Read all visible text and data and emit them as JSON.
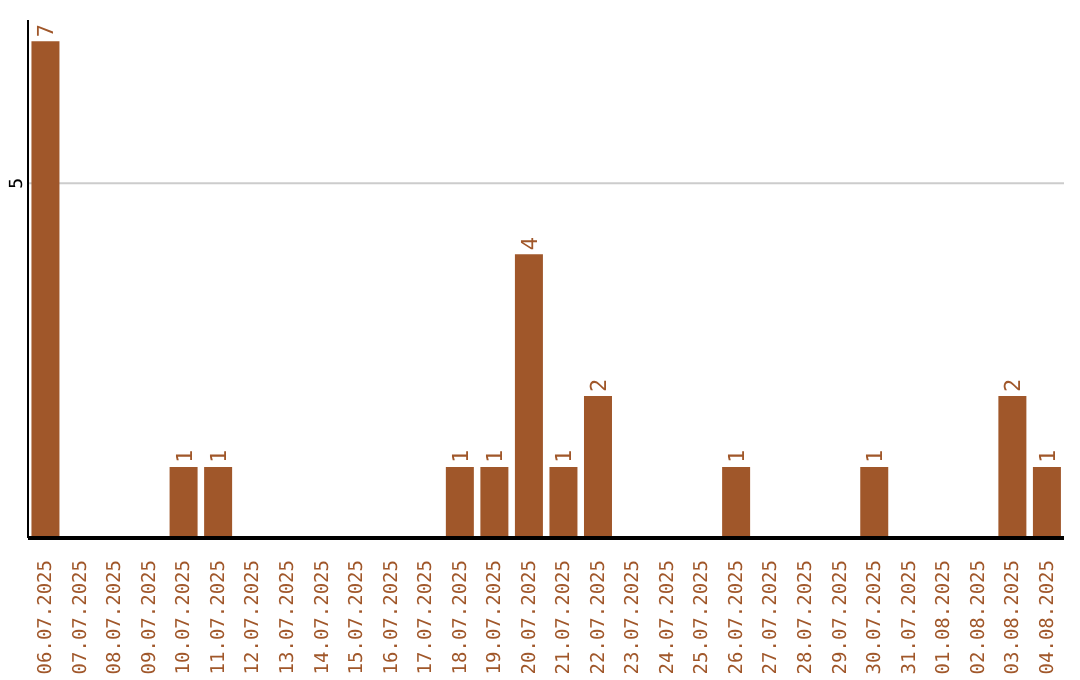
{
  "chart_data": {
    "type": "bar",
    "categories": [
      "06.07.2025",
      "07.07.2025",
      "08.07.2025",
      "09.07.2025",
      "10.07.2025",
      "11.07.2025",
      "12.07.2025",
      "13.07.2025",
      "14.07.2025",
      "15.07.2025",
      "16.07.2025",
      "17.07.2025",
      "18.07.2025",
      "19.07.2025",
      "20.07.2025",
      "21.07.2025",
      "22.07.2025",
      "23.07.2025",
      "24.07.2025",
      "25.07.2025",
      "26.07.2025",
      "27.07.2025",
      "28.07.2025",
      "29.07.2025",
      "30.07.2025",
      "31.07.2025",
      "01.08.2025",
      "02.08.2025",
      "03.08.2025",
      "04.08.2025"
    ],
    "values": [
      7,
      0,
      0,
      0,
      1,
      1,
      0,
      0,
      0,
      0,
      0,
      0,
      1,
      1,
      4,
      1,
      2,
      0,
      0,
      0,
      1,
      0,
      0,
      0,
      1,
      0,
      0,
      0,
      2,
      1
    ],
    "value_labels": [
      "7",
      null,
      null,
      null,
      "1",
      "1",
      null,
      null,
      null,
      null,
      null,
      null,
      "1",
      "1",
      "4",
      "1",
      "2",
      null,
      null,
      null,
      "1",
      null,
      null,
      null,
      "1",
      null,
      null,
      null,
      "2",
      "1"
    ],
    "color": "#a0572a",
    "ylim": [
      0,
      7.3
    ],
    "yticks": [
      5
    ],
    "grid": "y"
  }
}
